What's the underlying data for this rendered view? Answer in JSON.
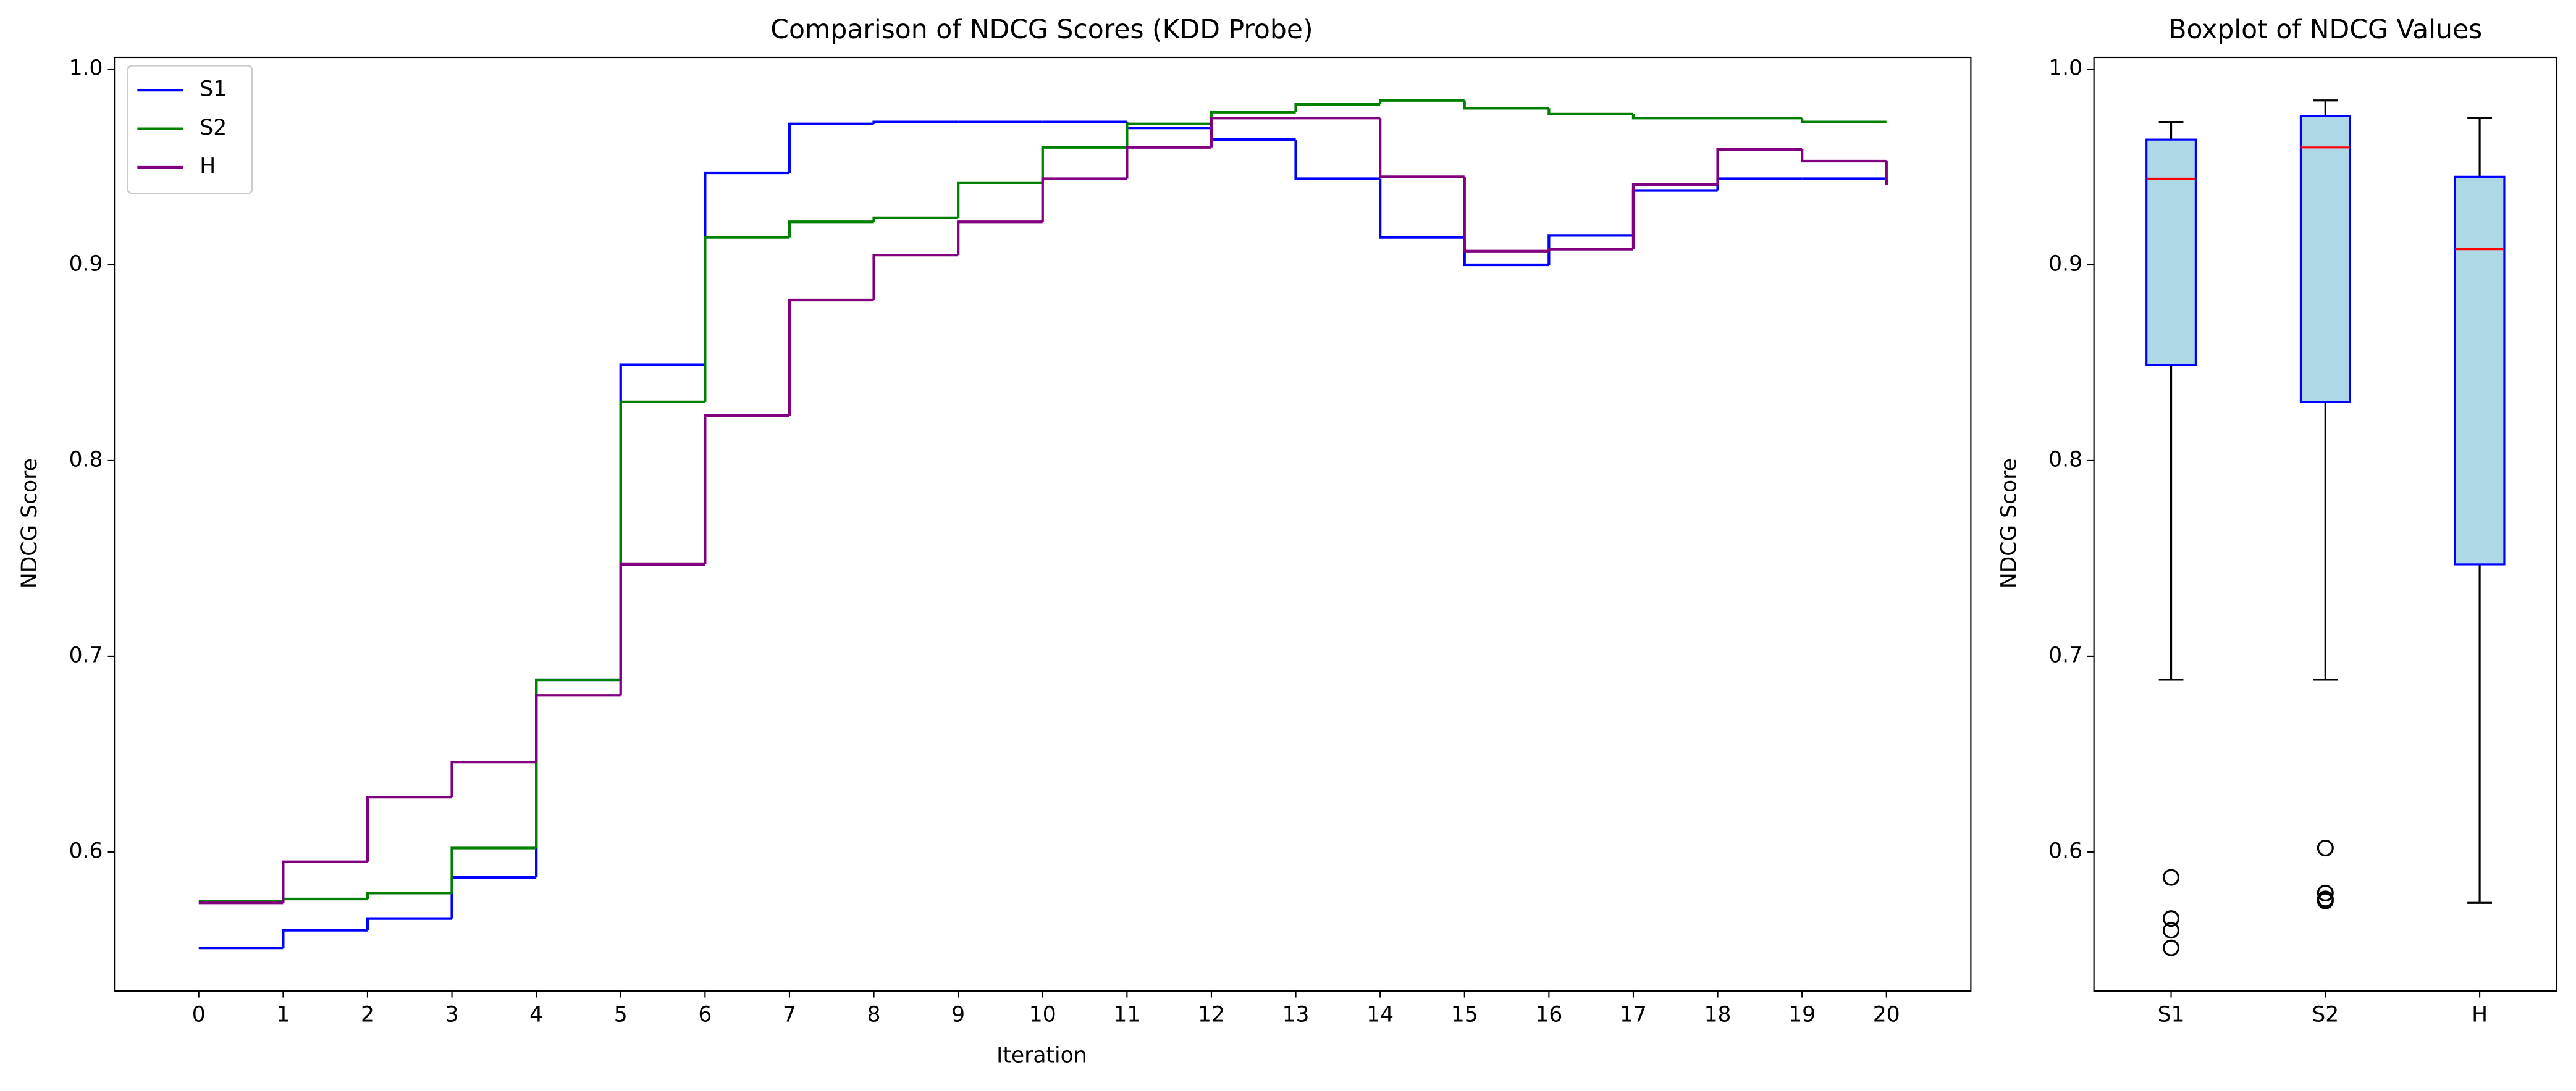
{
  "chart_data": [
    {
      "type": "step",
      "step": "post",
      "title": "Comparison of NDCG Scores (KDD Probe)",
      "xlabel": "Iteration",
      "ylabel": "NDCG Score",
      "x": [
        0,
        1,
        2,
        3,
        4,
        5,
        6,
        7,
        8,
        9,
        10,
        11,
        12,
        13,
        14,
        15,
        16,
        17,
        18,
        19,
        20
      ],
      "series": [
        {
          "name": "S1",
          "color": "blue",
          "values": [
            0.551,
            0.56,
            0.566,
            0.587,
            0.688,
            0.849,
            0.947,
            0.972,
            0.973,
            0.973,
            0.973,
            0.97,
            0.964,
            0.944,
            0.914,
            0.9,
            0.915,
            0.938,
            0.944,
            0.944,
            0.941
          ]
        },
        {
          "name": "S2",
          "color": "green",
          "values": [
            0.575,
            0.576,
            0.579,
            0.602,
            0.688,
            0.83,
            0.914,
            0.922,
            0.924,
            0.942,
            0.96,
            0.972,
            0.978,
            0.982,
            0.984,
            0.98,
            0.977,
            0.975,
            0.975,
            0.973,
            0.973
          ]
        },
        {
          "name": "H",
          "color": "purple",
          "values": [
            0.574,
            0.595,
            0.628,
            0.646,
            0.68,
            0.747,
            0.823,
            0.882,
            0.905,
            0.922,
            0.944,
            0.96,
            0.975,
            0.975,
            0.945,
            0.907,
            0.908,
            0.941,
            0.959,
            0.953,
            0.941
          ]
        }
      ],
      "xlim": [
        -1,
        21
      ],
      "xticks": [
        0,
        1,
        2,
        3,
        4,
        5,
        6,
        7,
        8,
        9,
        10,
        11,
        12,
        13,
        14,
        15,
        16,
        17,
        18,
        19,
        20
      ],
      "ylim": [
        0.529,
        1.006
      ],
      "yticks": [
        0.6,
        0.7,
        0.8,
        0.9,
        {
          "value": 1.0,
          "label": "1.0"
        }
      ],
      "legend": "upper left"
    },
    {
      "type": "box",
      "title": "Boxplot of NDCG Values",
      "ylabel": "NDCG Score",
      "categories": [
        "S1",
        "S2",
        "H"
      ],
      "boxes": [
        {
          "whislo": 0.688,
          "q1": 0.849,
          "median": 0.944,
          "q3": 0.964,
          "whishi": 0.973,
          "fliers": [
            0.587,
            0.566,
            0.56,
            0.551
          ]
        },
        {
          "whislo": 0.688,
          "q1": 0.83,
          "median": 0.96,
          "q3": 0.976,
          "whishi": 0.984,
          "fliers": [
            0.602,
            0.579,
            0.576,
            0.575
          ]
        },
        {
          "whislo": 0.574,
          "q1": 0.747,
          "median": 0.908,
          "q3": 0.945,
          "whishi": 0.975,
          "fliers": []
        }
      ],
      "fill_color": "#add8e6",
      "edge_color": "blue",
      "median_color": "red",
      "ylim": [
        0.529,
        1.006
      ],
      "yticks": [
        0.6,
        0.7,
        0.8,
        0.9,
        {
          "value": 1.0,
          "label": "1.0"
        }
      ]
    }
  ]
}
